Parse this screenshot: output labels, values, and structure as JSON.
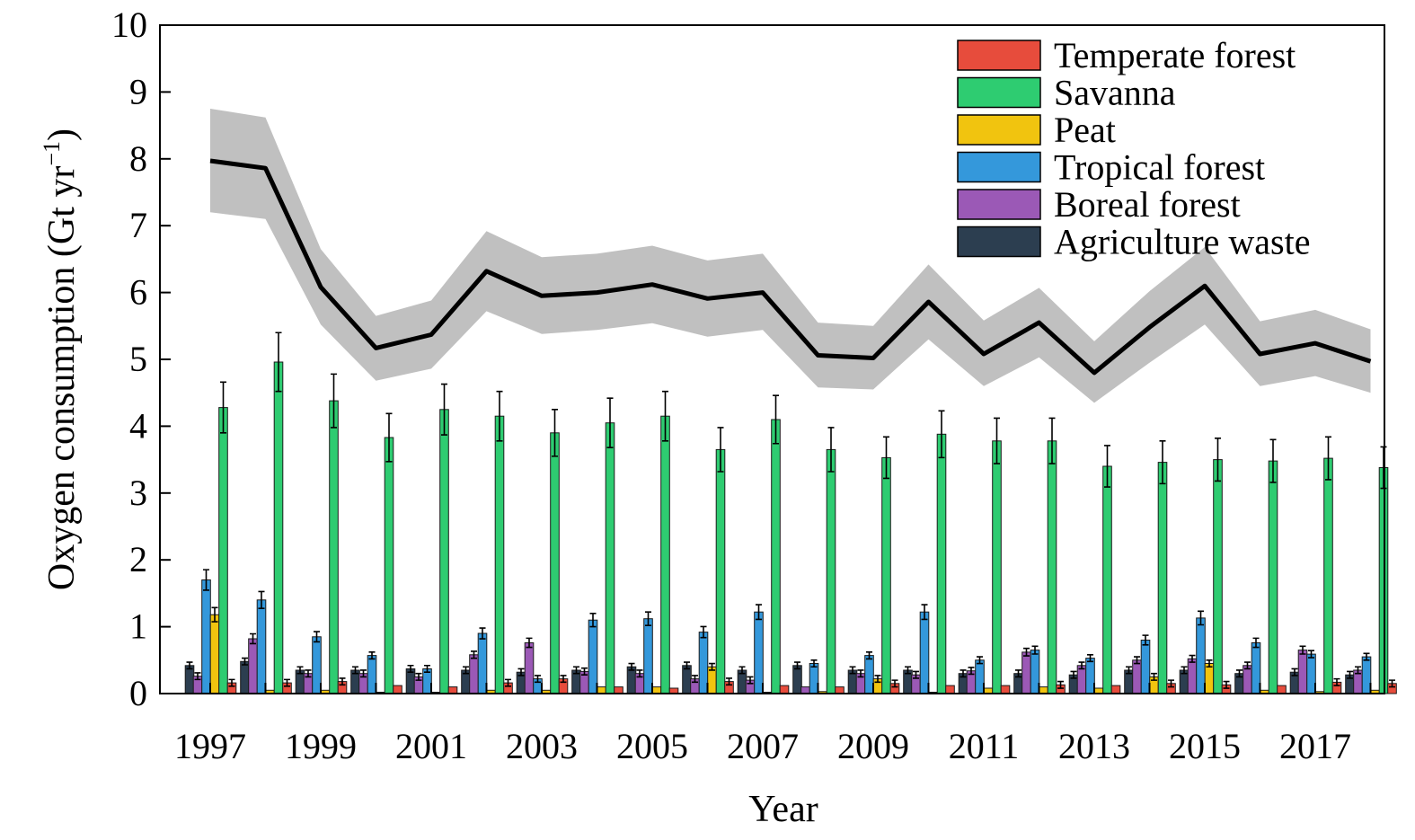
{
  "chart_data": {
    "type": "bar",
    "xlabel": "Year",
    "ylabel": "Oxygen consumption (Gt yr",
    "ylabel_sup": "−1",
    "ylabel_close": ")",
    "ylim": [
      0,
      10
    ],
    "yticks": [
      0,
      1,
      2,
      3,
      4,
      5,
      6,
      7,
      8,
      9,
      10
    ],
    "years": [
      1997,
      1998,
      1999,
      2000,
      2001,
      2002,
      2003,
      2004,
      2005,
      2006,
      2007,
      2008,
      2009,
      2010,
      2011,
      2012,
      2013,
      2014,
      2015,
      2016,
      2017,
      2018
    ],
    "xtick_labels": [
      "1997",
      "1999",
      "2001",
      "2003",
      "2005",
      "2007",
      "2009",
      "2011",
      "2013",
      "2015",
      "2017"
    ],
    "legend_position": "top-right",
    "grid": false,
    "series": [
      {
        "name": "Agriculture waste",
        "color": "#2c3e50",
        "values": [
          0.42,
          0.48,
          0.35,
          0.35,
          0.37,
          0.35,
          0.32,
          0.35,
          0.4,
          0.42,
          0.35,
          0.42,
          0.35,
          0.35,
          0.3,
          0.3,
          0.28,
          0.35,
          0.35,
          0.3,
          0.32,
          0.28
        ]
      },
      {
        "name": "Boreal forest",
        "color": "#9b59b6",
        "values": [
          0.26,
          0.82,
          0.3,
          0.3,
          0.25,
          0.58,
          0.76,
          0.33,
          0.3,
          0.22,
          0.2,
          0.1,
          0.3,
          0.28,
          0.34,
          0.62,
          0.42,
          0.5,
          0.52,
          0.42,
          0.65,
          0.35
        ]
      },
      {
        "name": "Tropical forest",
        "color": "#3498db",
        "values": [
          1.7,
          1.4,
          0.85,
          0.57,
          0.37,
          0.9,
          0.22,
          1.1,
          1.12,
          0.92,
          1.22,
          0.45,
          0.57,
          1.22,
          0.5,
          0.65,
          0.53,
          0.8,
          1.13,
          0.76,
          0.59,
          0.55
        ]
      },
      {
        "name": "Peat",
        "color": "#f1c40f",
        "values": [
          1.18,
          0.05,
          0.05,
          0.02,
          0.02,
          0.05,
          0.05,
          0.1,
          0.1,
          0.4,
          0.02,
          0.03,
          0.22,
          0.02,
          0.08,
          0.1,
          0.08,
          0.25,
          0.45,
          0.05,
          0.03,
          0.05
        ]
      },
      {
        "name": "Savanna",
        "color": "#2ecc71",
        "values": [
          4.28,
          4.96,
          4.38,
          3.83,
          4.25,
          4.15,
          3.9,
          4.05,
          4.15,
          3.65,
          4.1,
          3.65,
          3.53,
          3.88,
          3.78,
          3.78,
          3.4,
          3.46,
          3.5,
          3.48,
          3.52,
          3.38
        ],
        "errors": [
          0.38,
          0.44,
          0.4,
          0.36,
          0.38,
          0.37,
          0.35,
          0.37,
          0.37,
          0.33,
          0.36,
          0.33,
          0.31,
          0.35,
          0.34,
          0.34,
          0.31,
          0.32,
          0.32,
          0.32,
          0.32,
          0.31
        ]
      },
      {
        "name": "Temperate forest",
        "color": "#e74c3c",
        "values": [
          0.16,
          0.16,
          0.18,
          0.12,
          0.1,
          0.16,
          0.22,
          0.1,
          0.08,
          0.18,
          0.12,
          0.1,
          0.15,
          0.12,
          0.12,
          0.13,
          0.12,
          0.15,
          0.13,
          0.12,
          0.17,
          0.15
        ]
      }
    ],
    "total": {
      "values": [
        7.97,
        7.86,
        6.08,
        5.17,
        5.37,
        6.32,
        5.95,
        6.0,
        6.12,
        5.91,
        6.0,
        5.06,
        5.02,
        5.86,
        5.08,
        5.55,
        4.8,
        5.48,
        6.1,
        5.08,
        5.24,
        4.97
      ],
      "upper": [
        8.75,
        8.62,
        6.65,
        5.65,
        5.88,
        6.92,
        6.53,
        6.58,
        6.7,
        6.48,
        6.58,
        5.55,
        5.5,
        6.42,
        5.58,
        6.07,
        5.27,
        6.02,
        6.68,
        5.57,
        5.74,
        5.45
      ],
      "lower": [
        7.2,
        7.1,
        5.52,
        4.68,
        4.86,
        5.72,
        5.38,
        5.44,
        5.54,
        5.34,
        5.44,
        4.58,
        4.55,
        5.3,
        4.6,
        5.03,
        4.35,
        4.95,
        5.52,
        4.6,
        4.75,
        4.5
      ],
      "line_color": "#000000",
      "band_color": "#c0c0c0"
    },
    "legend_order": [
      "Temperate forest",
      "Savanna",
      "Peat",
      "Tropical forest",
      "Boreal forest",
      "Agriculture waste"
    ]
  }
}
